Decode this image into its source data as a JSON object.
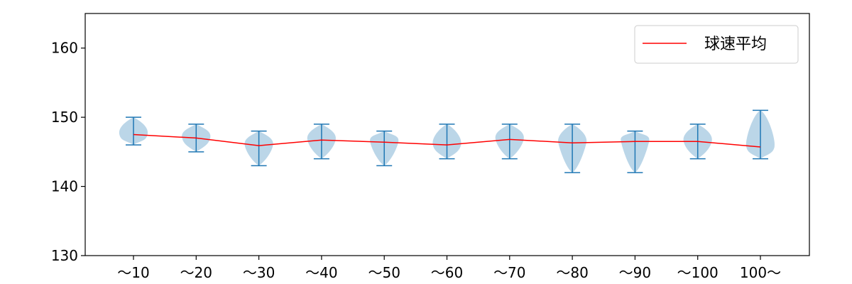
{
  "chart_data": {
    "type": "violin",
    "categories": [
      "〜10",
      "〜20",
      "〜30",
      "〜40",
      "〜50",
      "〜60",
      "〜70",
      "〜80",
      "〜90",
      "〜100",
      "100〜"
    ],
    "ylim": [
      130,
      165
    ],
    "yticks": [
      130,
      140,
      150,
      160
    ],
    "grid": false,
    "legend_position": "top-right",
    "series": [
      {
        "name": "球速平均",
        "type": "line",
        "color": "#ff0000",
        "values": [
          147.5,
          147.0,
          145.9,
          146.7,
          146.4,
          146.0,
          146.8,
          146.3,
          146.5,
          146.5,
          145.7
        ]
      }
    ],
    "violins": {
      "color": "#1f77b4",
      "fill": "#1f77b4",
      "fill_opacity": 0.3,
      "min": [
        146,
        145,
        143,
        144,
        143,
        144,
        144,
        142,
        142,
        144,
        144
      ],
      "max": [
        150,
        149,
        148,
        149,
        148,
        149,
        149,
        149,
        148,
        149,
        151
      ]
    }
  }
}
